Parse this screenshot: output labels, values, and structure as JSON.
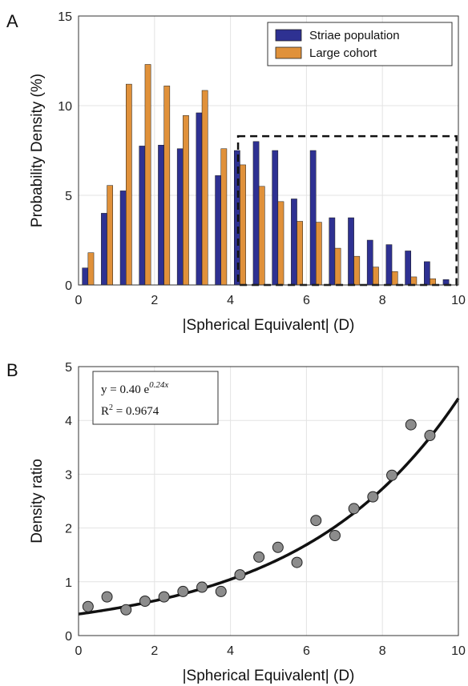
{
  "chart_data": [
    {
      "panel_label": "A",
      "type": "bar",
      "xlabel": "|Spherical Equivalent| (D)",
      "ylabel": "Probability Density (%)",
      "xlim": [
        0,
        10
      ],
      "ylim": [
        0,
        15
      ],
      "x_ticks": [
        "0",
        "2",
        "4",
        "6",
        "8",
        "10"
      ],
      "y_ticks": [
        "0",
        "5",
        "10",
        "15"
      ],
      "grid": true,
      "legend_position": "top-right",
      "x": [
        0.25,
        0.75,
        1.25,
        1.75,
        2.25,
        2.75,
        3.25,
        3.75,
        4.25,
        4.75,
        5.25,
        5.75,
        6.25,
        6.75,
        7.25,
        7.75,
        8.25,
        8.75,
        9.25,
        9.75
      ],
      "series": [
        {
          "name": "Striae population",
          "color": "#2e3192",
          "values": [
            0.95,
            4.0,
            5.25,
            7.75,
            7.8,
            7.6,
            9.6,
            6.1,
            7.5,
            8.0,
            7.5,
            4.8,
            7.5,
            3.75,
            3.75,
            2.5,
            2.25,
            1.9,
            1.3,
            0.3
          ]
        },
        {
          "name": "Large cohort",
          "color": "#e0913a",
          "values": [
            1.8,
            5.55,
            11.2,
            12.3,
            11.1,
            9.45,
            10.85,
            7.6,
            6.7,
            5.5,
            4.65,
            3.55,
            3.5,
            2.05,
            1.6,
            1.0,
            0.75,
            0.45,
            0.35,
            0.0
          ]
        }
      ],
      "highlight_box": {
        "x": [
          4.2,
          9.95
        ],
        "y": [
          0,
          8.3
        ],
        "style": "dashed"
      }
    },
    {
      "panel_label": "B",
      "type": "scatter",
      "xlabel": "|Spherical Equivalent| (D)",
      "ylabel": "Density ratio",
      "xlim": [
        0,
        10
      ],
      "ylim": [
        0,
        5
      ],
      "x_ticks": [
        "0",
        "2",
        "4",
        "6",
        "8",
        "10"
      ],
      "y_ticks": [
        "0",
        "1",
        "2",
        "3",
        "4",
        "5"
      ],
      "grid": true,
      "points": {
        "x": [
          0.25,
          0.75,
          1.25,
          1.75,
          2.25,
          2.75,
          3.25,
          3.75,
          4.25,
          4.75,
          5.25,
          5.75,
          6.25,
          6.75,
          7.25,
          7.75,
          8.25,
          8.75,
          9.25,
          9.75
        ],
        "y": [
          0.54,
          0.72,
          0.48,
          0.64,
          0.72,
          0.82,
          0.9,
          0.82,
          1.13,
          1.46,
          1.64,
          1.36,
          2.14,
          1.86,
          2.36,
          2.58,
          2.98,
          3.92,
          3.72,
          null
        ],
        "color": "#8c8c8c"
      },
      "fit": {
        "a": 0.4,
        "b": 0.24,
        "color": "#111111"
      },
      "annotation": {
        "equation": "y = 0.40 e",
        "exponent": "0.24x",
        "r2_label": "R",
        "r2_sup": "2",
        "r2_value": " = 0.9674",
        "position": "top-left"
      }
    }
  ]
}
